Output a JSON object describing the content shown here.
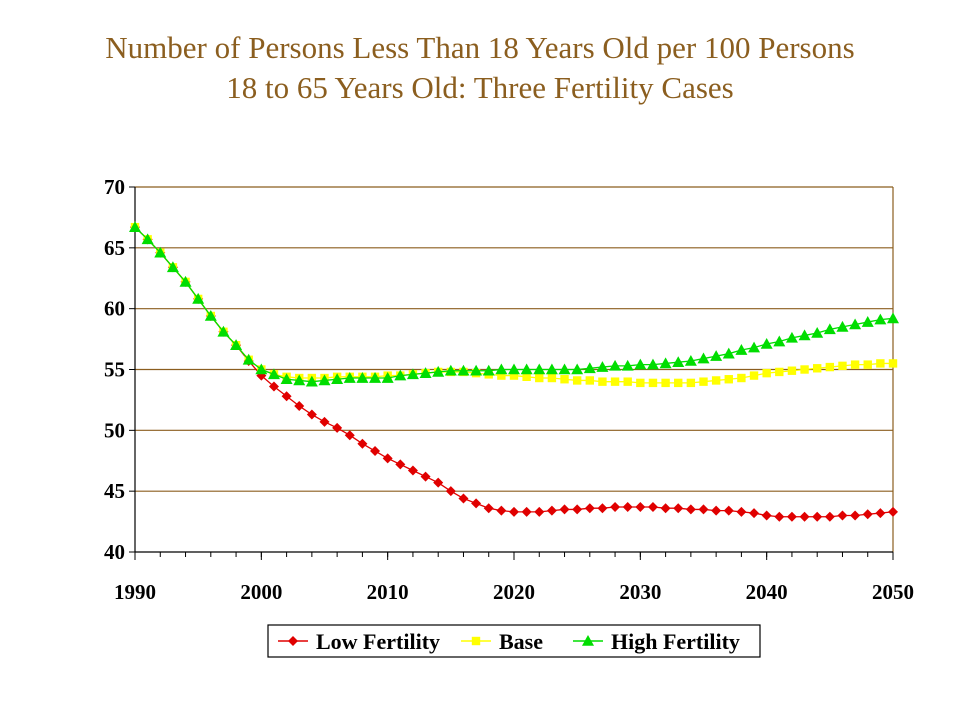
{
  "colors": {
    "title": "#8b5e1f",
    "low": "#e00000",
    "base": "#ffff00",
    "high": "#00dd00",
    "grid": "#8b5e1f",
    "axis": "#000000"
  },
  "chart_data": {
    "type": "line",
    "title": "Number of Persons Less Than 18 Years Old per 100 Persons",
    "subtitle": "18 to 65 Years Old: Three Fertility Cases",
    "xlabel": "",
    "ylabel": "",
    "xlim": [
      1990,
      2050
    ],
    "ylim": [
      40,
      70
    ],
    "x_ticks": [
      1990,
      2000,
      2010,
      2020,
      2030,
      2040,
      2050
    ],
    "y_ticks": [
      40,
      45,
      50,
      55,
      60,
      65,
      70
    ],
    "grid": "horizontal",
    "legend_position": "bottom",
    "x": [
      1990,
      1991,
      1992,
      1993,
      1994,
      1995,
      1996,
      1997,
      1998,
      1999,
      2000,
      2001,
      2002,
      2003,
      2004,
      2005,
      2006,
      2007,
      2008,
      2009,
      2010,
      2011,
      2012,
      2013,
      2014,
      2015,
      2016,
      2017,
      2018,
      2019,
      2020,
      2021,
      2022,
      2023,
      2024,
      2025,
      2026,
      2027,
      2028,
      2029,
      2030,
      2031,
      2032,
      2033,
      2034,
      2035,
      2036,
      2037,
      2038,
      2039,
      2040,
      2041,
      2042,
      2043,
      2044,
      2045,
      2046,
      2047,
      2048,
      2049,
      2050
    ],
    "series": [
      {
        "name": "Low Fertility",
        "marker": "diamond",
        "values": [
          66.7,
          65.7,
          64.6,
          63.4,
          62.2,
          60.8,
          59.4,
          58.1,
          57.0,
          55.7,
          54.5,
          53.6,
          52.8,
          52.0,
          51.3,
          50.7,
          50.2,
          49.6,
          48.9,
          48.3,
          47.7,
          47.2,
          46.7,
          46.2,
          45.7,
          45.0,
          44.4,
          44.0,
          43.6,
          43.4,
          43.3,
          43.3,
          43.3,
          43.4,
          43.5,
          43.5,
          43.6,
          43.6,
          43.7,
          43.7,
          43.7,
          43.7,
          43.6,
          43.6,
          43.5,
          43.5,
          43.4,
          43.4,
          43.3,
          43.2,
          43.0,
          42.9,
          42.9,
          42.9,
          42.9,
          42.9,
          43.0,
          43.0,
          43.1,
          43.2,
          43.3
        ]
      },
      {
        "name": "Base",
        "marker": "square",
        "values": [
          66.7,
          65.7,
          64.6,
          63.4,
          62.2,
          60.8,
          59.4,
          58.1,
          57.0,
          55.8,
          55.0,
          54.6,
          54.4,
          54.3,
          54.3,
          54.3,
          54.4,
          54.4,
          54.4,
          54.4,
          54.5,
          54.5,
          54.6,
          54.7,
          54.8,
          54.8,
          54.8,
          54.7,
          54.6,
          54.5,
          54.5,
          54.4,
          54.3,
          54.3,
          54.2,
          54.1,
          54.1,
          54.0,
          54.0,
          54.0,
          53.9,
          53.9,
          53.9,
          53.9,
          53.9,
          54.0,
          54.1,
          54.2,
          54.3,
          54.5,
          54.7,
          54.8,
          54.9,
          55.0,
          55.1,
          55.2,
          55.3,
          55.4,
          55.4,
          55.5,
          55.5
        ]
      },
      {
        "name": "High Fertility",
        "marker": "triangle",
        "values": [
          66.7,
          65.7,
          64.6,
          63.4,
          62.2,
          60.8,
          59.4,
          58.1,
          57.0,
          55.8,
          55.0,
          54.6,
          54.2,
          54.1,
          54.0,
          54.1,
          54.2,
          54.3,
          54.3,
          54.3,
          54.3,
          54.5,
          54.6,
          54.7,
          54.8,
          54.9,
          54.9,
          54.9,
          54.9,
          55.0,
          55.0,
          55.0,
          55.0,
          55.0,
          55.0,
          55.0,
          55.1,
          55.2,
          55.3,
          55.3,
          55.4,
          55.4,
          55.5,
          55.6,
          55.7,
          55.9,
          56.1,
          56.3,
          56.6,
          56.8,
          57.1,
          57.3,
          57.6,
          57.8,
          58.0,
          58.3,
          58.5,
          58.7,
          58.9,
          59.1,
          59.2
        ]
      }
    ]
  }
}
